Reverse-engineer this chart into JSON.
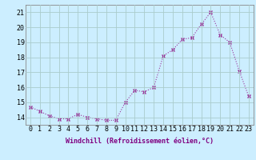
{
  "x": [
    0,
    1,
    2,
    3,
    4,
    5,
    6,
    7,
    8,
    9,
    10,
    11,
    12,
    13,
    14,
    15,
    16,
    17,
    18,
    19,
    20,
    21,
    22,
    23
  ],
  "y": [
    14.7,
    14.4,
    14.1,
    13.9,
    13.9,
    14.2,
    14.0,
    13.9,
    13.8,
    13.8,
    15.0,
    15.8,
    15.7,
    16.0,
    18.1,
    18.5,
    19.2,
    19.3,
    20.2,
    21.0,
    19.5,
    19.0,
    17.1,
    15.4
  ],
  "line_color": "#993399",
  "marker": "x",
  "marker_size": 3,
  "xlabel": "Windchill (Refroidissement éolien,°C)",
  "ylabel_ticks": [
    14,
    15,
    16,
    17,
    18,
    19,
    20,
    21
  ],
  "xlim": [
    -0.5,
    23.5
  ],
  "ylim": [
    13.5,
    21.5
  ],
  "bg_color": "#cceeff",
  "grid_color": "#aacccc",
  "xlabel_fontsize": 6.0,
  "tick_fontsize": 6.0,
  "title": ""
}
